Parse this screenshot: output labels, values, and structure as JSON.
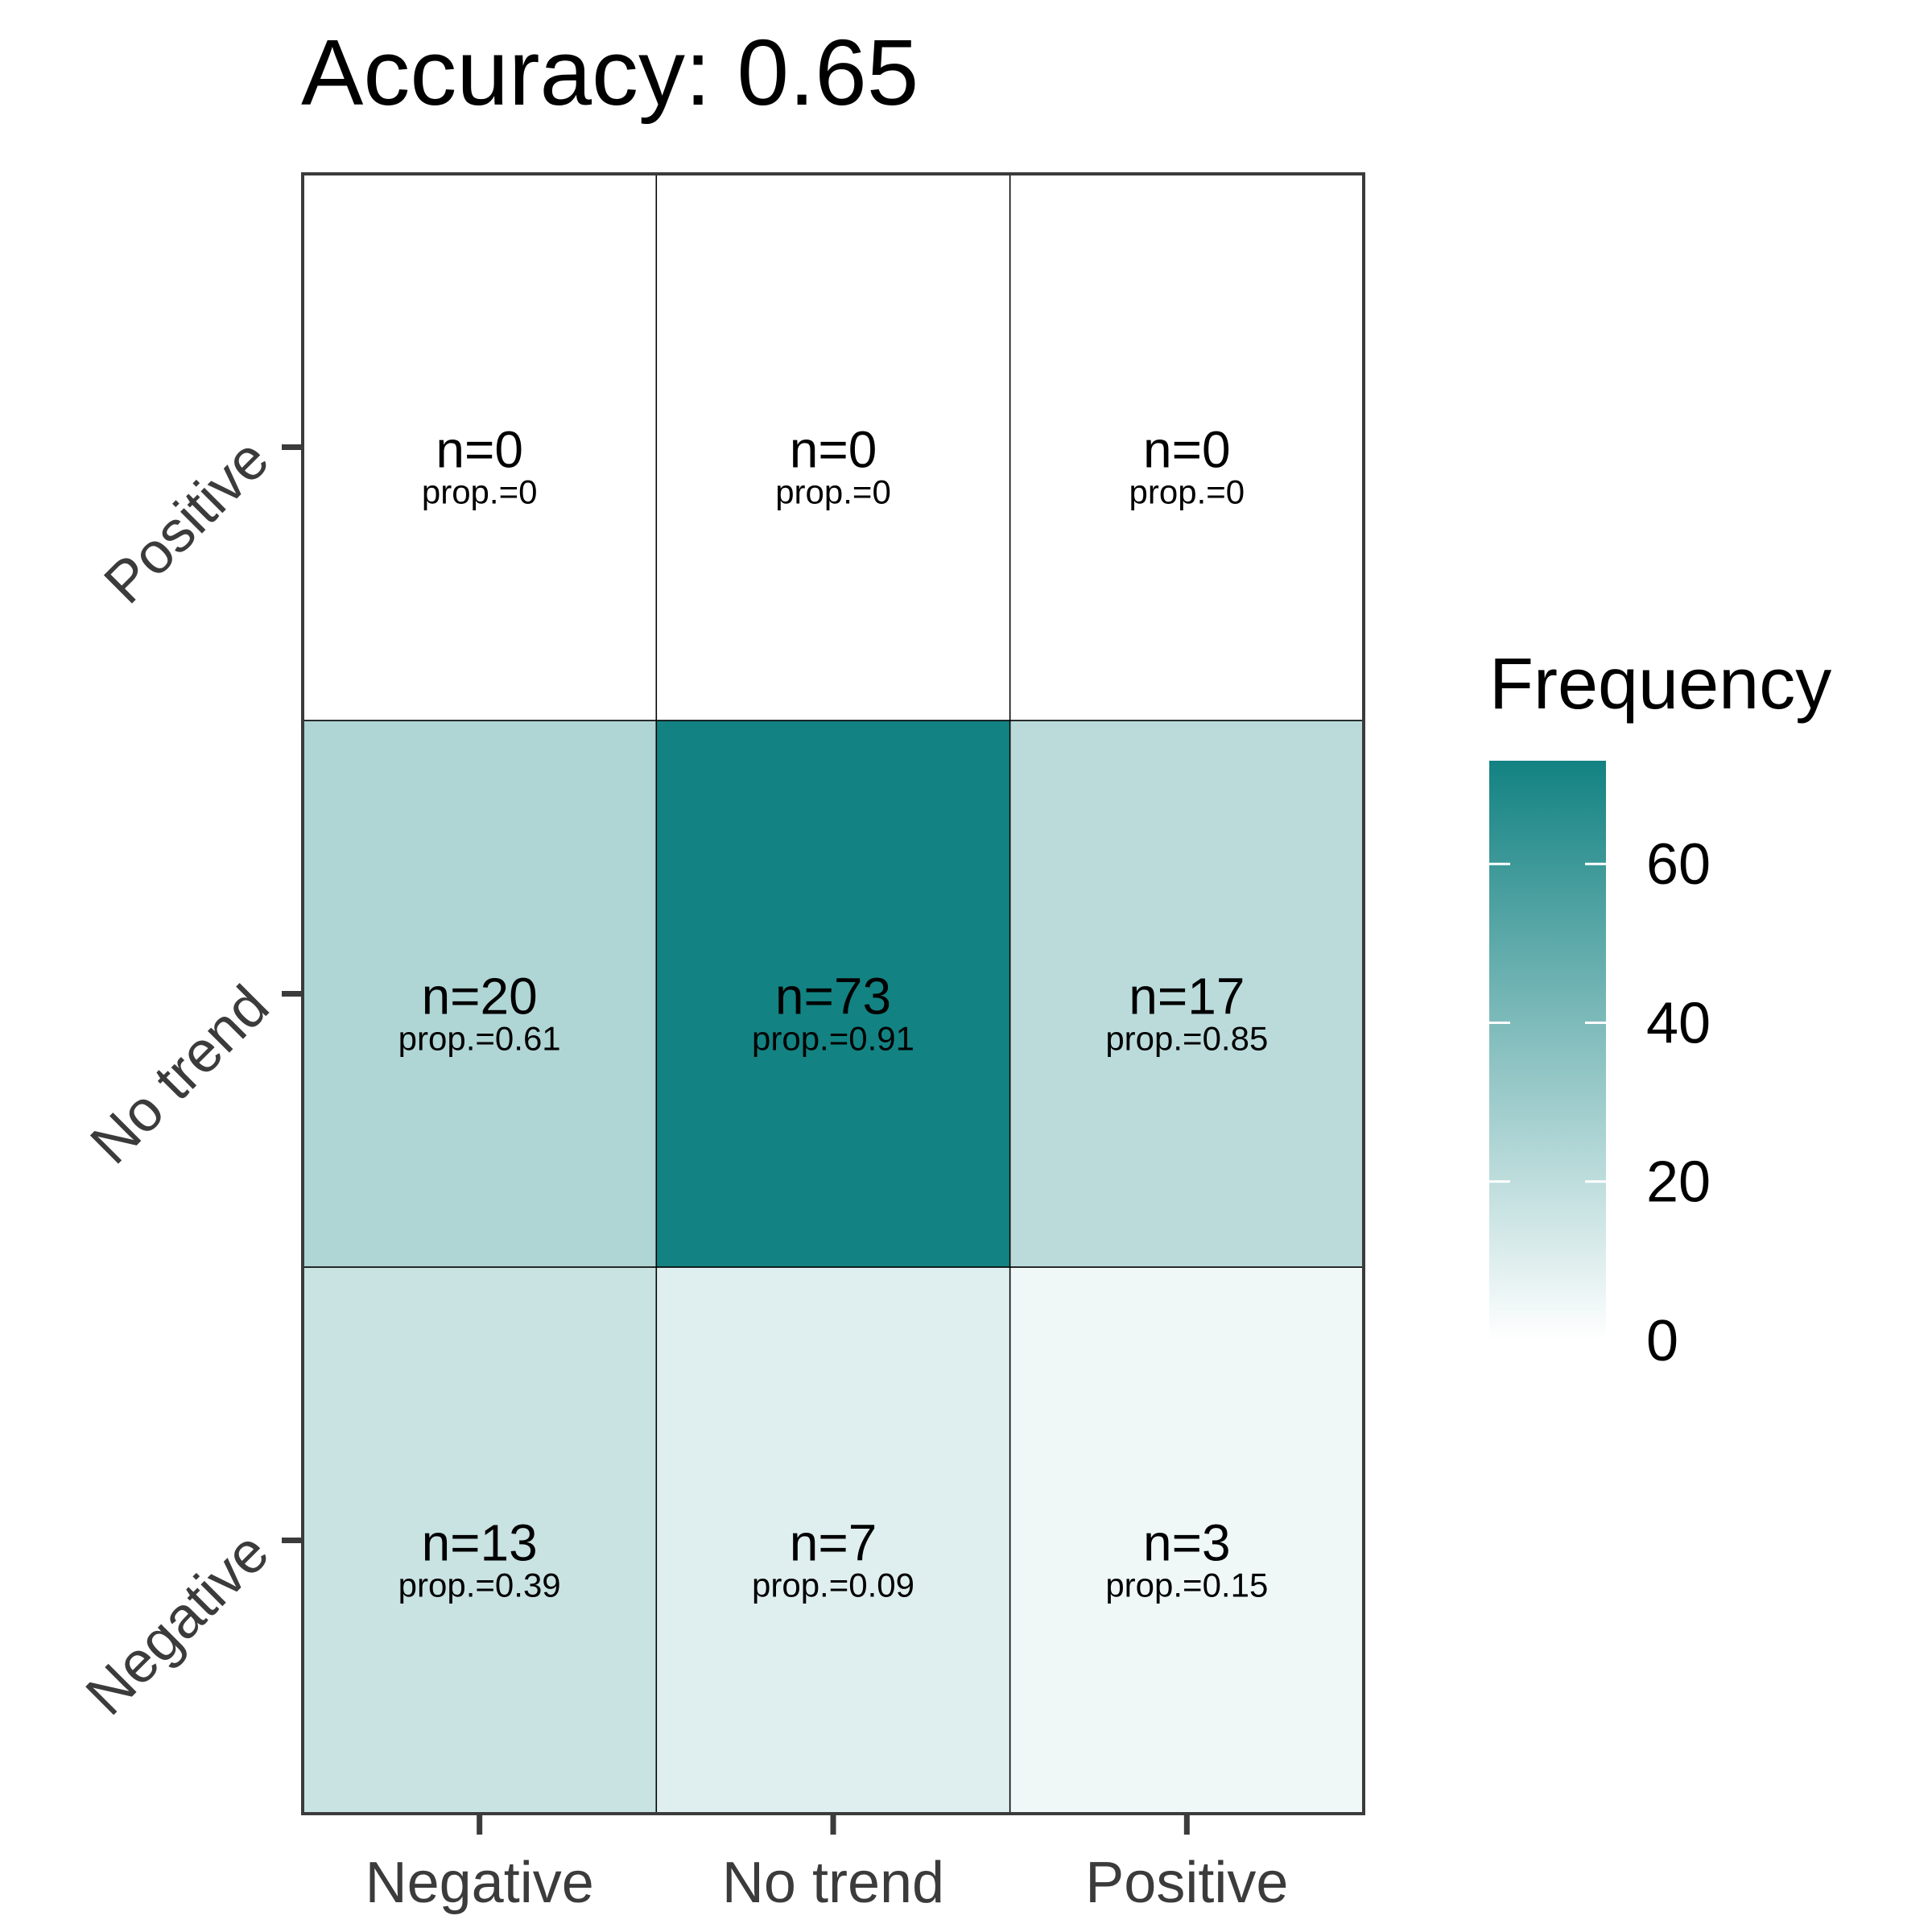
{
  "chart_data": {
    "type": "heatmap",
    "title": "Accuracy: 0.65",
    "x_categories": [
      "Negative",
      "No trend",
      "Positive"
    ],
    "y_categories": [
      "Negative",
      "No trend",
      "Positive"
    ],
    "cells": [
      [
        {
          "n": 13,
          "n_label": "n=13",
          "prop_label": "prop.=0.39"
        },
        {
          "n": 7,
          "n_label": "n=7",
          "prop_label": "prop.=0.09"
        },
        {
          "n": 3,
          "n_label": "n=3",
          "prop_label": "prop.=0.15"
        }
      ],
      [
        {
          "n": 20,
          "n_label": "n=20",
          "prop_label": "prop.=0.61"
        },
        {
          "n": 73,
          "n_label": "n=73",
          "prop_label": "prop.=0.91"
        },
        {
          "n": 17,
          "n_label": "n=17",
          "prop_label": "prop.=0.85"
        }
      ],
      [
        {
          "n": 0,
          "n_label": "n=0",
          "prop_label": "prop.=0"
        },
        {
          "n": 0,
          "n_label": "n=0",
          "prop_label": "prop.=0"
        },
        {
          "n": 0,
          "n_label": "n=0",
          "prop_label": "prop.=0"
        }
      ]
    ],
    "legend": {
      "title": "Frequency",
      "min": 0,
      "max": 73,
      "ticks": [
        "0",
        "20",
        "40",
        "60"
      ],
      "low_color": "#ffffff",
      "high_color": "#138282"
    },
    "grid": false
  }
}
